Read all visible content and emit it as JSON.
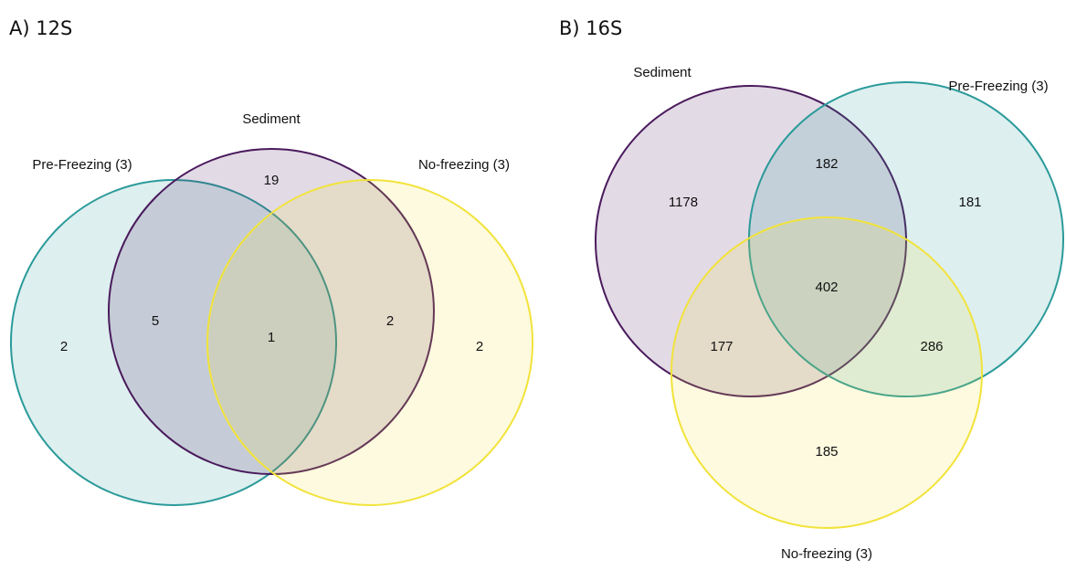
{
  "chart_data": [
    {
      "type": "venn",
      "title": "A) 12S",
      "sets": [
        {
          "name": "Pre-Freezing (3)",
          "color": "#2b9a9a"
        },
        {
          "name": "Sediment",
          "color": "#4a1a5c"
        },
        {
          "name": "No-freezing (3)",
          "color": "#f2e33a"
        }
      ],
      "values": [
        2,
        5,
        1,
        19,
        2,
        2
      ]
    },
    {
      "type": "venn",
      "title": "B) 16S",
      "sets": [
        {
          "name": "Sediment",
          "color": "#4a1a5c"
        },
        {
          "name": "Pre-Freezing (3)",
          "color": "#2b9a9a"
        },
        {
          "name": "No-freezing (3)",
          "color": "#f2e33a"
        }
      ],
      "values": [
        1178,
        182,
        181,
        402,
        177,
        286,
        185
      ]
    }
  ]
}
